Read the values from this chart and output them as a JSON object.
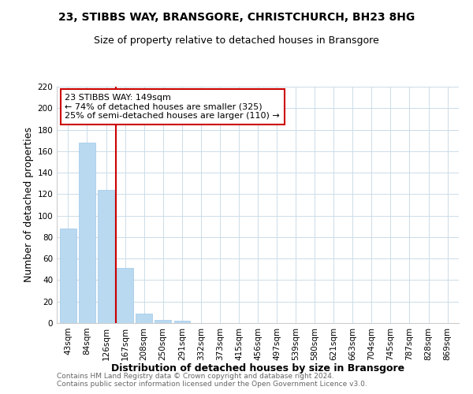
{
  "title": "23, STIBBS WAY, BRANSGORE, CHRISTCHURCH, BH23 8HG",
  "subtitle": "Size of property relative to detached houses in Bransgore",
  "xlabel": "Distribution of detached houses by size in Bransgore",
  "ylabel": "Number of detached properties",
  "categories": [
    "43sqm",
    "84sqm",
    "126sqm",
    "167sqm",
    "208sqm",
    "250sqm",
    "291sqm",
    "332sqm",
    "373sqm",
    "415sqm",
    "456sqm",
    "497sqm",
    "539sqm",
    "580sqm",
    "621sqm",
    "663sqm",
    "704sqm",
    "745sqm",
    "787sqm",
    "828sqm",
    "869sqm"
  ],
  "values": [
    88,
    168,
    124,
    51,
    9,
    3,
    2,
    0,
    0,
    0,
    0,
    0,
    0,
    0,
    0,
    0,
    0,
    0,
    0,
    0,
    0
  ],
  "bar_color": "#b8d9f0",
  "bar_edge_color": "#a0c8e8",
  "property_line_color": "#cc0000",
  "annotation_text": "23 STIBBS WAY: 149sqm\n← 74% of detached houses are smaller (325)\n25% of semi-detached houses are larger (110) →",
  "annotation_box_color": "white",
  "annotation_box_edge_color": "#cc0000",
  "ylim": [
    0,
    220
  ],
  "yticks": [
    0,
    20,
    40,
    60,
    80,
    100,
    120,
    140,
    160,
    180,
    200,
    220
  ],
  "footer1": "Contains HM Land Registry data © Crown copyright and database right 2024.",
  "footer2": "Contains public sector information licensed under the Open Government Licence v3.0.",
  "bg_color": "#ffffff",
  "grid_color": "#ccdce8",
  "title_fontsize": 10,
  "subtitle_fontsize": 9,
  "axis_label_fontsize": 9,
  "tick_fontsize": 7.5,
  "annotation_fontsize": 8,
  "footer_fontsize": 6.5
}
